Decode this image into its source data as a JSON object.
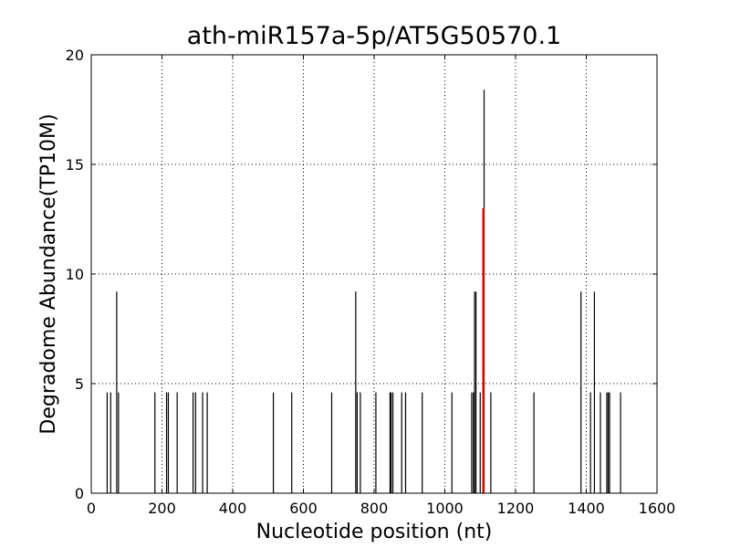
{
  "chart_data": {
    "type": "bar",
    "title": "ath-miR157a-5p/AT5G50570.1",
    "xlabel": "Nucleotide position (nt)",
    "ylabel": "Degradome Abundance(TP10M)",
    "xlim": [
      0,
      1600
    ],
    "ylim": [
      0,
      20
    ],
    "xticks": [
      "0",
      "200",
      "400",
      "600",
      "800",
      "1000",
      "1200",
      "1400",
      "1600"
    ],
    "yticks": [
      "0",
      "5",
      "10",
      "15",
      "20"
    ],
    "grid": true,
    "series": [
      {
        "color": "#000000",
        "points": [
          {
            "x": 45,
            "y": 4.6
          },
          {
            "x": 55,
            "y": 4.6
          },
          {
            "x": 72,
            "y": 9.2
          },
          {
            "x": 77,
            "y": 4.6
          },
          {
            "x": 180,
            "y": 4.6
          },
          {
            "x": 213,
            "y": 4.6
          },
          {
            "x": 218,
            "y": 4.6
          },
          {
            "x": 243,
            "y": 4.6
          },
          {
            "x": 288,
            "y": 4.6
          },
          {
            "x": 295,
            "y": 4.6
          },
          {
            "x": 315,
            "y": 4.6
          },
          {
            "x": 328,
            "y": 4.6
          },
          {
            "x": 515,
            "y": 4.6
          },
          {
            "x": 567,
            "y": 4.6
          },
          {
            "x": 680,
            "y": 4.6
          },
          {
            "x": 748,
            "y": 9.2
          },
          {
            "x": 752,
            "y": 4.6
          },
          {
            "x": 761,
            "y": 4.6
          },
          {
            "x": 805,
            "y": 4.6
          },
          {
            "x": 845,
            "y": 4.6
          },
          {
            "x": 848,
            "y": 4.6
          },
          {
            "x": 853,
            "y": 4.6
          },
          {
            "x": 878,
            "y": 4.6
          },
          {
            "x": 889,
            "y": 4.6
          },
          {
            "x": 936,
            "y": 4.6
          },
          {
            "x": 1020,
            "y": 4.6
          },
          {
            "x": 1076,
            "y": 4.6
          },
          {
            "x": 1081,
            "y": 4.6
          },
          {
            "x": 1084,
            "y": 9.2
          },
          {
            "x": 1088,
            "y": 9.2
          },
          {
            "x": 1100,
            "y": 4.6
          },
          {
            "x": 1111,
            "y": 18.4
          },
          {
            "x": 1130,
            "y": 4.6
          },
          {
            "x": 1252,
            "y": 4.6
          },
          {
            "x": 1385,
            "y": 9.2
          },
          {
            "x": 1412,
            "y": 4.6
          },
          {
            "x": 1423,
            "y": 9.2
          },
          {
            "x": 1440,
            "y": 4.6
          },
          {
            "x": 1458,
            "y": 4.6
          },
          {
            "x": 1462,
            "y": 4.6
          },
          {
            "x": 1466,
            "y": 4.6
          },
          {
            "x": 1497,
            "y": 4.6
          }
        ]
      },
      {
        "color": "#dd0000",
        "points": [
          {
            "x": 1109,
            "y": 13.0
          }
        ]
      }
    ]
  }
}
